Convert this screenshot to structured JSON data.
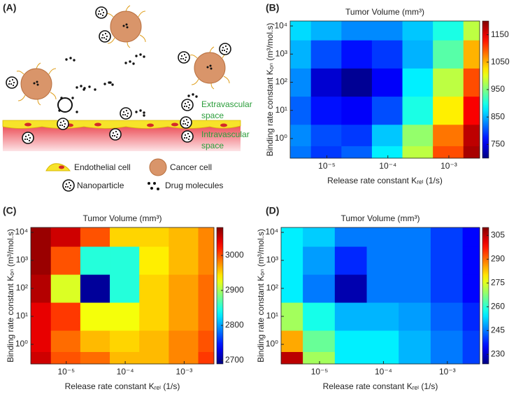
{
  "diagram": {
    "panel_label": "(A)",
    "extravascular": [
      "Extravascular",
      "space"
    ],
    "intravascular": [
      "Intravascular",
      "space"
    ],
    "legend": [
      "Endothelial cell",
      "Cancer cell",
      "Nanoparticle",
      "Drug molecules"
    ]
  },
  "chart_data": [
    {
      "type": "heatmap",
      "panel_label": "(B)",
      "title": "Tumor Volume (mm³)",
      "xlabel": "Release rate constant Kᵣₑₗ (1/s)",
      "ylabel": "Binding rate constant Kₒₙ (m³/mol.s)",
      "log_x": true,
      "log_y": true,
      "colormap": "jet",
      "x": [
        3e-06,
        1e-05,
        3e-05,
        0.0001,
        0.0003,
        0.001,
        0.003
      ],
      "y": [
        0.3,
        1,
        10,
        100,
        1000,
        10000
      ],
      "z": [
        [
          820,
          790,
          810,
          880,
          980,
          1100,
          1180
        ],
        [
          830,
          800,
          790,
          860,
          960,
          1080,
          1170
        ],
        [
          810,
          770,
          760,
          800,
          900,
          1020,
          1140
        ],
        [
          830,
          740,
          710,
          760,
          880,
          980,
          1100
        ],
        [
          850,
          800,
          770,
          790,
          850,
          930,
          1050
        ],
        [
          870,
          850,
          830,
          830,
          860,
          900,
          980
        ]
      ],
      "xlim": [
        2.5e-06,
        0.0032
      ],
      "ylim": [
        0.2,
        15000
      ],
      "xticks": [
        {
          "value": 1e-05,
          "label": "10⁻⁵"
        },
        {
          "value": 0.0001,
          "label": "10⁻⁴"
        },
        {
          "value": 0.001,
          "label": "10⁻³"
        }
      ],
      "yticks": [
        {
          "value": 1,
          "label": "10⁰"
        },
        {
          "value": 10,
          "label": "10¹"
        },
        {
          "value": 100,
          "label": "10²"
        },
        {
          "value": 1000,
          "label": "10³"
        },
        {
          "value": 10000,
          "label": "10⁴"
        }
      ],
      "zlim": [
        700,
        1200
      ],
      "zticks": [
        750,
        850,
        950,
        1050,
        1150
      ]
    },
    {
      "type": "heatmap",
      "panel_label": "(C)",
      "title": "Tumor Volume (mm³)",
      "xlabel": "Release rate constant Kᵣₑₗ (1/s)",
      "ylabel": "Binding rate constant Kₒₙ (m³/mol.s)",
      "log_x": true,
      "log_y": true,
      "colormap": "jet",
      "x": [
        3e-06,
        1e-05,
        3e-05,
        0.0001,
        0.0003,
        0.001,
        0.003
      ],
      "y": [
        0.3,
        1,
        10,
        100,
        1000,
        10000
      ],
      "z": [
        [
          3050,
          3000,
          2990,
          2960,
          2960,
          2980,
          3010
        ],
        [
          3040,
          2990,
          2960,
          2950,
          2960,
          2980,
          3000
        ],
        [
          3040,
          3010,
          2930,
          2930,
          2950,
          2970,
          2990
        ],
        [
          3060,
          2920,
          2700,
          2850,
          2950,
          2970,
          2990
        ],
        [
          3070,
          3000,
          2850,
          2850,
          2940,
          2960,
          2980
        ],
        [
          3070,
          3050,
          3000,
          2950,
          2950,
          2960,
          2980
        ]
      ],
      "xlim": [
        2.5e-06,
        0.0032
      ],
      "ylim": [
        0.2,
        15000
      ],
      "xticks": [
        {
          "value": 1e-05,
          "label": "10⁻⁵"
        },
        {
          "value": 0.0001,
          "label": "10⁻⁴"
        },
        {
          "value": 0.001,
          "label": "10⁻³"
        }
      ],
      "yticks": [
        {
          "value": 1,
          "label": "10⁰"
        },
        {
          "value": 10,
          "label": "10¹"
        },
        {
          "value": 100,
          "label": "10²"
        },
        {
          "value": 1000,
          "label": "10³"
        },
        {
          "value": 10000,
          "label": "10⁴"
        }
      ],
      "zlim": [
        2690,
        3080
      ],
      "zticks": [
        2700,
        2800,
        2900,
        3000
      ]
    },
    {
      "type": "heatmap",
      "panel_label": "(D)",
      "title": "Tumor Volume (mm³)",
      "xlabel": "Release rate constant Kᵣₑₗ (1/s)",
      "ylabel": "Binding rate constant Kₒₙ (m³/mol.s)",
      "log_x": true,
      "log_y": true,
      "colormap": "jet",
      "x": [
        3e-06,
        1e-05,
        3e-05,
        0.0001,
        0.0003,
        0.001,
        0.003
      ],
      "y": [
        0.3,
        1,
        10,
        100,
        1000,
        10000
      ],
      "z": [
        [
          305,
          270,
          255,
          255,
          250,
          245,
          240
        ],
        [
          285,
          265,
          255,
          255,
          250,
          245,
          240
        ],
        [
          270,
          258,
          250,
          250,
          248,
          243,
          238
        ],
        [
          255,
          245,
          228,
          245,
          245,
          240,
          235
        ],
        [
          255,
          248,
          238,
          245,
          245,
          240,
          235
        ],
        [
          255,
          252,
          245,
          245,
          245,
          240,
          235
        ]
      ],
      "xlim": [
        2.5e-06,
        0.0032
      ],
      "ylim": [
        0.2,
        15000
      ],
      "xticks": [
        {
          "value": 1e-05,
          "label": "10⁻⁵"
        },
        {
          "value": 0.0001,
          "label": "10⁻⁴"
        },
        {
          "value": 0.001,
          "label": "10⁻³"
        }
      ],
      "yticks": [
        {
          "value": 1,
          "label": "10⁰"
        },
        {
          "value": 10,
          "label": "10¹"
        },
        {
          "value": 100,
          "label": "10²"
        },
        {
          "value": 1000,
          "label": "10³"
        },
        {
          "value": 10000,
          "label": "10⁴"
        }
      ],
      "zlim": [
        224,
        310
      ],
      "zticks": [
        230,
        245,
        260,
        275,
        290,
        305
      ]
    }
  ]
}
